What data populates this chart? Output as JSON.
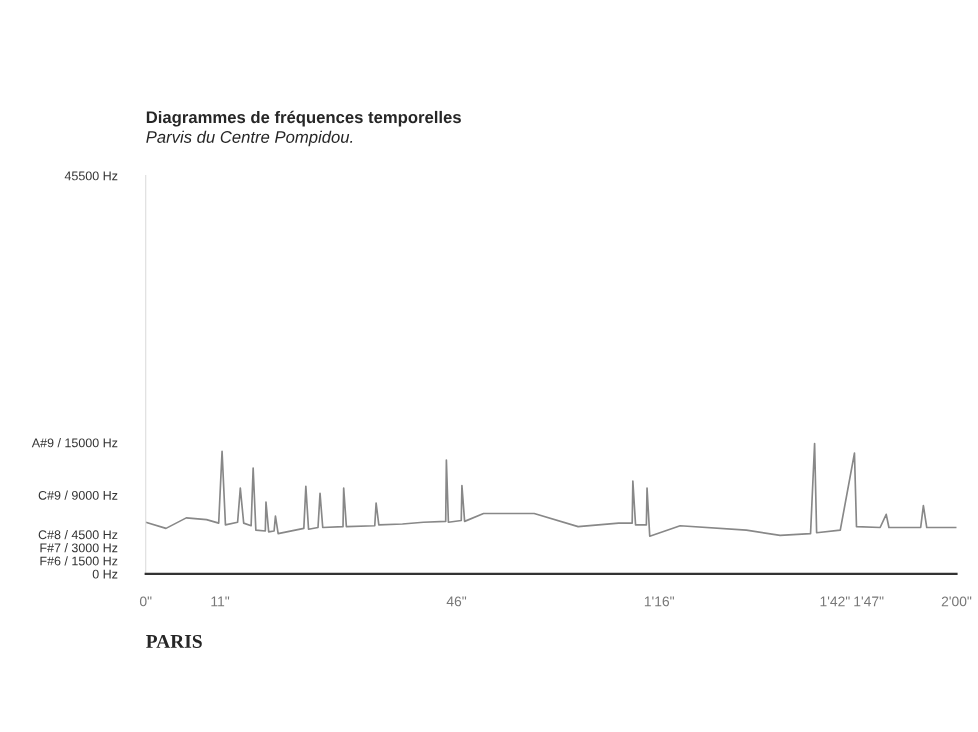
{
  "chart_data": {
    "type": "line",
    "title": "Diagrammes de fréquences temporelles",
    "subtitle": "Parvis du Centre Pompidou.",
    "annotations": [
      "PARIS"
    ],
    "series": [
      {
        "color": "#888888",
        "x": [
          0,
          3,
          6,
          9,
          10.8,
          11.3,
          11.8,
          13.6,
          14,
          14.5,
          15.6,
          15.9,
          16.3,
          17.7,
          17.8,
          18.2,
          19,
          19.2,
          19.6,
          23.4,
          23.7,
          24.1,
          25.5,
          25.8,
          26.2,
          29.2,
          29.3,
          29.7,
          33.9,
          34.1,
          34.5,
          38,
          41.1,
          44.4,
          44.5,
          44.8,
          46.7,
          46.8,
          47.2,
          50,
          57.5,
          64,
          70,
          72,
          72.1,
          72.5,
          74.1,
          74.2,
          74.6,
          79.1,
          88.9,
          93.9,
          98.4,
          99,
          99.3,
          102.8,
          104.9,
          105.2,
          108.7,
          109.6,
          110,
          114.7,
          115.1,
          115.6,
          118.5,
          120
        ],
        "values": [
          5900,
          5200,
          6400,
          6200,
          5800,
          14000,
          5600,
          5900,
          9800,
          5800,
          5500,
          12100,
          5000,
          4900,
          8200,
          4800,
          4900,
          6600,
          4600,
          5200,
          10000,
          5100,
          5300,
          9200,
          5300,
          5400,
          9800,
          5400,
          5500,
          8100,
          5600,
          5700,
          5900,
          6000,
          13000,
          5900,
          6100,
          10100,
          6000,
          6900,
          6900,
          5400,
          5800,
          5800,
          10600,
          5600,
          5600,
          9800,
          4300,
          5500,
          5000,
          4400,
          4600,
          14900,
          4700,
          5000,
          13800,
          5400,
          5300,
          6800,
          5300,
          5300,
          7800,
          5300,
          5300,
          5300
        ]
      }
    ],
    "xlim": [
      0,
      120
    ],
    "ylim": [
      0,
      45500
    ],
    "xticks": [
      {
        "value": 0,
        "label": "0\""
      },
      {
        "value": 11,
        "label": "11\""
      },
      {
        "value": 46,
        "label": "46\""
      },
      {
        "value": 76,
        "label": "1'16\""
      },
      {
        "value": 102,
        "label": "1'42\""
      },
      {
        "value": 107,
        "label": "1'47\""
      },
      {
        "value": 120,
        "label": "2'00\""
      }
    ],
    "yticks": [
      {
        "value": 0,
        "label": "0 Hz"
      },
      {
        "value": 1500,
        "label": "F#6 / 1500 Hz"
      },
      {
        "value": 3000,
        "label": "F#7 / 3000 Hz"
      },
      {
        "value": 4500,
        "label": "C#8 / 4500 Hz"
      },
      {
        "value": 9000,
        "label": "C#9 / 9000 Hz"
      },
      {
        "value": 15000,
        "label": "A#9 / 15000 Hz"
      },
      {
        "value": 45500,
        "label": "45500 Hz"
      }
    ],
    "grid": false,
    "marker": "none",
    "line_style": "solid"
  }
}
